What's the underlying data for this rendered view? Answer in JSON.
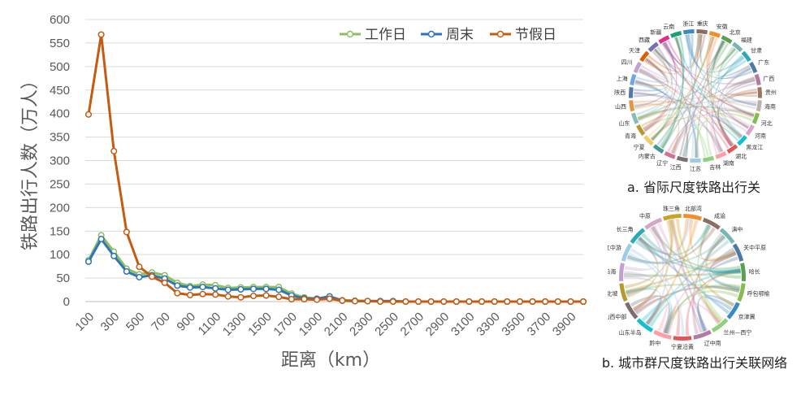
{
  "chart_data": [
    {
      "type": "line",
      "title": "",
      "xlabel": "距离（km）",
      "ylabel": "铁路出行人数（万人）",
      "ylim": [
        0,
        600
      ],
      "yticks": [
        0,
        50,
        100,
        150,
        200,
        250,
        300,
        350,
        400,
        450,
        500,
        550,
        600
      ],
      "x": [
        100,
        200,
        300,
        400,
        500,
        600,
        700,
        800,
        900,
        1000,
        1100,
        1200,
        1300,
        1400,
        1500,
        1600,
        1700,
        1800,
        1900,
        2000,
        2100,
        2200,
        2300,
        2400,
        2500,
        2600,
        2700,
        2800,
        2900,
        3000,
        3100,
        3200,
        3300,
        3400,
        3500,
        3600,
        3700,
        3800,
        3900,
        4000
      ],
      "xtick_labels": [
        "100",
        "300",
        "500",
        "700",
        "900",
        "1100",
        "1300",
        "1500",
        "1700",
        "1900",
        "2100",
        "2300",
        "2500",
        "2700",
        "2900",
        "3100",
        "3300",
        "3500",
        "3700",
        "3900"
      ],
      "legend_position": "top-right",
      "grid": true,
      "series": [
        {
          "name": "工作日",
          "color": "#8cbf5f",
          "values": [
            88,
            141,
            106,
            70,
            58,
            62,
            56,
            40,
            33,
            36,
            35,
            29,
            30,
            31,
            31,
            31,
            17,
            9,
            6,
            10,
            3,
            2,
            1,
            1,
            1,
            0,
            0,
            0,
            0,
            0,
            0,
            0,
            0,
            0,
            0,
            0,
            0,
            0,
            0,
            0
          ]
        },
        {
          "name": "周末",
          "color": "#2e75b6",
          "values": [
            85,
            133,
            97,
            64,
            52,
            56,
            49,
            34,
            30,
            31,
            28,
            25,
            26,
            27,
            27,
            25,
            13,
            7,
            6,
            11,
            2,
            1,
            1,
            1,
            1,
            0,
            0,
            0,
            0,
            0,
            0,
            0,
            0,
            0,
            0,
            0,
            0,
            0,
            0,
            0
          ]
        },
        {
          "name": "节假日",
          "color": "#c55a11",
          "values": [
            398,
            568,
            320,
            148,
            74,
            53,
            40,
            18,
            14,
            16,
            15,
            11,
            9,
            12,
            13,
            10,
            5,
            5,
            4,
            6,
            2,
            1,
            1,
            0,
            0,
            0,
            0,
            0,
            0,
            0,
            0,
            0,
            0,
            0,
            0,
            0,
            0,
            0,
            0,
            0
          ]
        }
      ]
    },
    {
      "type": "chord",
      "title": "",
      "caption": "a. 省际尺度铁路出行关",
      "nodes": [
        {
          "label": "重庆",
          "color": "#8c6d62"
        },
        {
          "label": "安徽",
          "color": "#f28e2b"
        },
        {
          "label": "北京",
          "color": "#59a14f"
        },
        {
          "label": "福建",
          "color": "#76b7b2"
        },
        {
          "label": "甘肃",
          "color": "#2ca9b7"
        },
        {
          "label": "广东",
          "color": "#4e79a7"
        },
        {
          "label": "广西",
          "color": "#b07aa1"
        },
        {
          "label": "贵州",
          "color": "#9c755f"
        },
        {
          "label": "海南",
          "color": "#bab0ac"
        },
        {
          "label": "河北",
          "color": "#86bc4e"
        },
        {
          "label": "河南",
          "color": "#d4a6c8"
        },
        {
          "label": "黑龙江",
          "color": "#17becf"
        },
        {
          "label": "湖北",
          "color": "#e15759"
        },
        {
          "label": "湖南",
          "color": "#ff9da7"
        },
        {
          "label": "吉林",
          "color": "#8cd17d"
        },
        {
          "label": "江苏",
          "color": "#a0cbe8"
        },
        {
          "label": "江西",
          "color": "#79706e"
        },
        {
          "label": "辽宁",
          "color": "#d37295"
        },
        {
          "label": "内蒙古",
          "color": "#499894"
        },
        {
          "label": "宁夏",
          "color": "#f1ce63"
        },
        {
          "label": "青海",
          "color": "#b6992d"
        },
        {
          "label": "山东",
          "color": "#86bcb6"
        },
        {
          "label": "山西",
          "color": "#e49444"
        },
        {
          "label": "陕西",
          "color": "#5778a4"
        },
        {
          "label": "上海",
          "color": "#6fa8dc"
        },
        {
          "label": "四川",
          "color": "#c2a0d0"
        },
        {
          "label": "天津",
          "color": "#d95f02"
        },
        {
          "label": "西藏",
          "color": "#7570b3"
        },
        {
          "label": "新疆",
          "color": "#e7298a"
        },
        {
          "label": "云南",
          "color": "#1b9e77"
        },
        {
          "label": "浙江",
          "color": "#3b8bc2"
        }
      ]
    },
    {
      "type": "chord",
      "title": "",
      "caption": "b. 城市群尺度铁路出行关联网络",
      "nodes": [
        {
          "label": "北部湾",
          "color": "#f28e2b"
        },
        {
          "label": "成渝",
          "color": "#8c6d62"
        },
        {
          "label": "滇中",
          "color": "#76b7b2"
        },
        {
          "label": "关中平原",
          "color": "#4e79a7"
        },
        {
          "label": "哈长",
          "color": "#59a14f"
        },
        {
          "label": "呼包鄂榆",
          "color": "#86bc4e"
        },
        {
          "label": "京津冀",
          "color": "#3b8bc2"
        },
        {
          "label": "兰州—西宁",
          "color": "#8cd17d"
        },
        {
          "label": "辽中南",
          "color": "#b07aa1"
        },
        {
          "label": "宁夏沿黄",
          "color": "#e15759"
        },
        {
          "label": "黔中",
          "color": "#ff9da7"
        },
        {
          "label": "山东半岛",
          "color": "#17becf"
        },
        {
          "label": "山西中部",
          "color": "#79706e"
        },
        {
          "label": "天山北坡",
          "color": "#b6992d"
        },
        {
          "label": "粤闽浙沿海",
          "color": "#c2a0d0"
        },
        {
          "label": "长江中游",
          "color": "#a0cbe8"
        },
        {
          "label": "长三角",
          "color": "#2ca9b7"
        },
        {
          "label": "中原",
          "color": "#d4a6c8"
        },
        {
          "label": "珠三角",
          "color": "#c9a227"
        }
      ]
    }
  ]
}
